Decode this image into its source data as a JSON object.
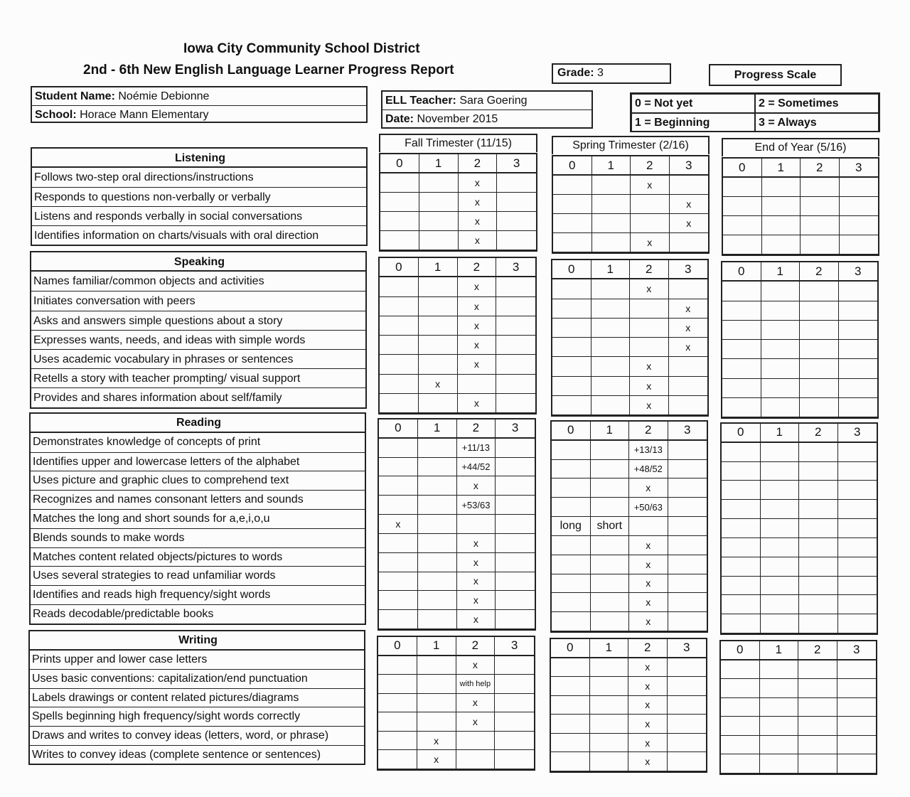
{
  "header": {
    "district": "Iowa City Community School District",
    "report_title": "2nd - 6th New English Language Learner Progress Report",
    "grade_label": "Grade:",
    "grade": "3",
    "progress_scale_label": "Progress Scale"
  },
  "student": {
    "name_label": "Student Name:",
    "name": "Noémie Debionne",
    "school_label": "School:",
    "school": "Horace Mann Elementary",
    "teacher_label": "ELL Teacher:",
    "teacher": "Sara Goering",
    "date_label": "Date:",
    "date": "November 2015"
  },
  "scale": [
    "0 = Not yet",
    "2 = Sometimes",
    "1 = Beginning",
    "3 = Always"
  ],
  "periods": [
    "Fall Trimester (11/15)",
    "Spring Trimester (2/16)",
    "End of Year (5/16)"
  ],
  "score_columns": [
    "0",
    "1",
    "2",
    "3"
  ],
  "sections": [
    {
      "title": "Listening",
      "items": [
        "Follows two-step oral directions/instructions",
        "Responds to questions non-verbally or verbally",
        "Listens and responds verbally in social conversations",
        "Identifies information on charts/visuals with oral direction"
      ],
      "fall": [
        [
          "",
          "",
          "x",
          ""
        ],
        [
          "",
          "",
          "x",
          ""
        ],
        [
          "",
          "",
          "x",
          ""
        ],
        [
          "",
          "",
          "x",
          ""
        ]
      ],
      "spring": [
        [
          "",
          "",
          "x",
          ""
        ],
        [
          "",
          "",
          "",
          "x"
        ],
        [
          "",
          "",
          "",
          "x"
        ],
        [
          "",
          "",
          "x",
          ""
        ]
      ]
    },
    {
      "title": "Speaking",
      "items": [
        "Names familiar/common objects and activities",
        "Initiates conversation with peers",
        "Asks and answers simple questions about a story",
        "Expresses wants, needs, and ideas with simple words",
        "Uses academic vocabulary in phrases or sentences",
        "Retells a story with teacher prompting/ visual support",
        "Provides and shares information about self/family"
      ],
      "fall": [
        [
          "",
          "",
          "x",
          ""
        ],
        [
          "",
          "",
          "x",
          ""
        ],
        [
          "",
          "",
          "x",
          ""
        ],
        [
          "",
          "",
          "x",
          ""
        ],
        [
          "",
          "",
          "x",
          ""
        ],
        [
          "",
          "x",
          "",
          ""
        ],
        [
          "",
          "",
          "x",
          ""
        ]
      ],
      "spring": [
        [
          "",
          "",
          "x",
          ""
        ],
        [
          "",
          "",
          "",
          "x"
        ],
        [
          "",
          "",
          "",
          "x"
        ],
        [
          "",
          "",
          "",
          "x"
        ],
        [
          "",
          "",
          "x",
          ""
        ],
        [
          "",
          "",
          "x",
          ""
        ],
        [
          "",
          "",
          "x",
          ""
        ]
      ]
    },
    {
      "title": "Reading",
      "items": [
        "Demonstrates knowledge of concepts of print",
        "Identifies upper and lowercase letters of the alphabet",
        "Uses picture and graphic clues to comprehend text",
        "Recognizes and names consonant letters and sounds",
        "Matches the long and short sounds for a,e,i,o,u",
        "Blends sounds to make words",
        "Matches content related objects/pictures to words",
        "Uses several strategies to read unfamiliar words",
        "Identifies and reads high frequency/sight words",
        "Reads decodable/predictable books"
      ],
      "fall": [
        [
          "",
          "",
          "+11/13",
          ""
        ],
        [
          "",
          "",
          "+44/52",
          ""
        ],
        [
          "",
          "",
          "x",
          ""
        ],
        [
          "",
          "",
          "+53/63",
          ""
        ],
        [
          "x",
          "",
          "",
          ""
        ],
        [
          "",
          "",
          "x",
          ""
        ],
        [
          "",
          "",
          "x",
          ""
        ],
        [
          "",
          "",
          "x",
          ""
        ],
        [
          "",
          "",
          "x",
          ""
        ],
        [
          "",
          "",
          "x",
          ""
        ]
      ],
      "spring": [
        [
          "",
          "",
          "+13/13",
          ""
        ],
        [
          "",
          "",
          "+48/52",
          ""
        ],
        [
          "",
          "",
          "x",
          ""
        ],
        [
          "",
          "",
          "+50/63",
          ""
        ],
        [
          "long",
          "short",
          "",
          ""
        ],
        [
          "",
          "",
          "x",
          ""
        ],
        [
          "",
          "",
          "x",
          ""
        ],
        [
          "",
          "",
          "x",
          ""
        ],
        [
          "",
          "",
          "x",
          ""
        ],
        [
          "",
          "",
          "x",
          ""
        ]
      ]
    },
    {
      "title": "Writing",
      "items": [
        "Prints upper and lower case letters",
        "Uses basic conventions: capitalization/end punctuation",
        "Labels drawings or content related pictures/diagrams",
        "Spells beginning high frequency/sight words correctly",
        "Draws and writes to convey ideas (letters, word, or phrase)",
        "Writes to convey ideas (complete sentence or sentences)"
      ],
      "fall": [
        [
          "",
          "",
          "x",
          ""
        ],
        [
          "",
          "",
          "with help",
          ""
        ],
        [
          "",
          "",
          "x",
          ""
        ],
        [
          "",
          "",
          "x",
          ""
        ],
        [
          "",
          "x",
          "",
          ""
        ],
        [
          "",
          "x",
          "",
          ""
        ]
      ],
      "spring": [
        [
          "",
          "",
          "x",
          ""
        ],
        [
          "",
          "",
          "x",
          ""
        ],
        [
          "",
          "",
          "x",
          ""
        ],
        [
          "",
          "",
          "x",
          ""
        ],
        [
          "",
          "",
          "x",
          ""
        ],
        [
          "",
          "",
          "x",
          ""
        ]
      ]
    }
  ]
}
